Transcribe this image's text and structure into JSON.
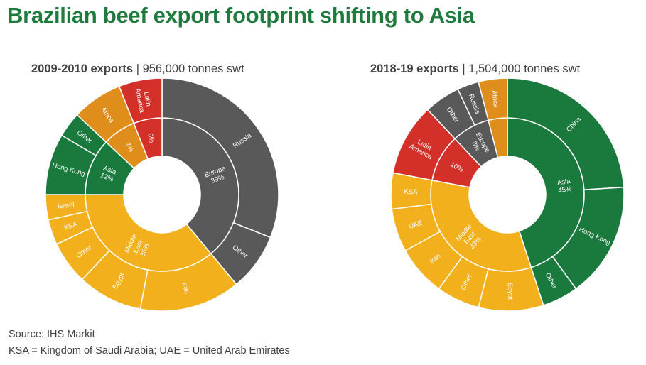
{
  "title": "Brazilian beef export footprint shifting to Asia",
  "footer": {
    "source": "Source: IHS Markit",
    "note": "KSA = Kingdom of Saudi Arabia; UAE = United Arab Emirates"
  },
  "colors": {
    "Europe": "#595959",
    "Middle East": "#f2b01c",
    "Asia": "#1a7a3e",
    "Africa": "#e08e1b",
    "Latin America": "#d4302a"
  },
  "chart_data": [
    {
      "type": "sunburst",
      "title_bold": "2009-2010 exports",
      "title_rest": " | 956,000 tonnes swt",
      "inner": [
        {
          "name": "Europe",
          "label": "Europe\n39%",
          "value": 39
        },
        {
          "name": "Middle East",
          "label": "Middle\nEast\n36%",
          "value": 36
        },
        {
          "name": "Asia",
          "label": "Asia\n12%",
          "value": 12
        },
        {
          "name": "Africa",
          "label": "7%",
          "value": 7
        },
        {
          "name": "Latin America",
          "label": "6%",
          "value": 6
        }
      ],
      "outer": [
        {
          "parent": "Europe",
          "label": "Russia",
          "value": 31
        },
        {
          "parent": "Europe",
          "label": "Other",
          "value": 8
        },
        {
          "parent": "Middle East",
          "label": "Iran",
          "value": 14
        },
        {
          "parent": "Middle East",
          "label": "Egypt",
          "value": 9
        },
        {
          "parent": "Middle East",
          "label": "Other",
          "value": 6
        },
        {
          "parent": "Middle East",
          "label": "KSA",
          "value": 3.5
        },
        {
          "parent": "Middle East",
          "label": "Israel",
          "value": 3.5
        },
        {
          "parent": "Asia",
          "label": "Hong Kong",
          "value": 8.5
        },
        {
          "parent": "Asia",
          "label": "Other",
          "value": 3.5
        },
        {
          "parent": "Africa",
          "label": "Africa",
          "value": 7
        },
        {
          "parent": "Latin America",
          "label": "Latin\nAmerica",
          "value": 6
        }
      ]
    },
    {
      "type": "sunburst",
      "title_bold": "2018-19 exports",
      "title_rest": " | 1,504,000 tonnes swt",
      "inner": [
        {
          "name": "Asia",
          "label": "Asia\n45%",
          "value": 45
        },
        {
          "name": "Middle East",
          "label": "Middle\nEast\n33%",
          "value": 33
        },
        {
          "name": "Latin America",
          "label": "10%",
          "value": 10
        },
        {
          "name": "Europe",
          "label": "Europe\n8%",
          "value": 8
        },
        {
          "name": "Africa",
          "label": "",
          "value": 4
        }
      ],
      "outer": [
        {
          "parent": "Asia",
          "label": "China",
          "value": 24
        },
        {
          "parent": "Asia",
          "label": "Hong Kong",
          "value": 16
        },
        {
          "parent": "Asia",
          "label": "Other",
          "value": 5
        },
        {
          "parent": "Middle East",
          "label": "Egypt",
          "value": 9
        },
        {
          "parent": "Middle East",
          "label": "Other",
          "value": 6
        },
        {
          "parent": "Middle East",
          "label": "Iran",
          "value": 7
        },
        {
          "parent": "Middle East",
          "label": "UAE",
          "value": 6
        },
        {
          "parent": "Middle East",
          "label": "KSA",
          "value": 5
        },
        {
          "parent": "Latin America",
          "label": "Latin\nAmerica",
          "value": 10
        },
        {
          "parent": "Europe",
          "label": "Other",
          "value": 5
        },
        {
          "parent": "Europe",
          "label": "Russia",
          "value": 3
        },
        {
          "parent": "Africa",
          "label": "Africa",
          "value": 4
        }
      ]
    }
  ]
}
